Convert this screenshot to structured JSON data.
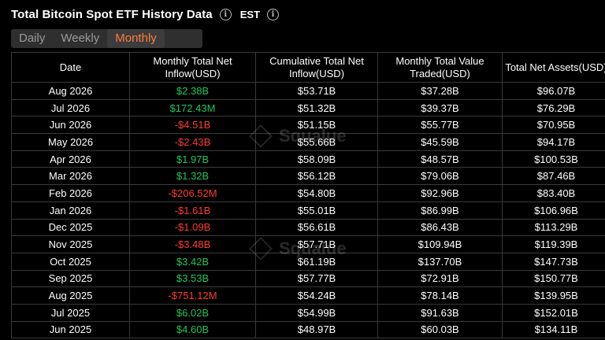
{
  "header": {
    "title": "Total Bitcoin Spot ETF History Data",
    "timezone": "EST"
  },
  "tabs": [
    {
      "label": "Daily",
      "active": false
    },
    {
      "label": "Weekly",
      "active": false
    },
    {
      "label": "Monthly",
      "active": true
    }
  ],
  "watermark": "Squalue",
  "table": {
    "columns": [
      "Date",
      "Monthly Total Net Inflow(USD)",
      "Cumulative Total Net Inflow(USD)",
      "Monthly Total Value Traded(USD)",
      "Total Net Assets(USD)"
    ],
    "rows": [
      {
        "date": "Aug 2026",
        "inflow": "$2.38B",
        "sign": "pos",
        "cumulative": "$53.71B",
        "traded": "$37.28B",
        "assets": "$96.07B"
      },
      {
        "date": "Jul 2026",
        "inflow": "$172.43M",
        "sign": "pos",
        "cumulative": "$51.32B",
        "traded": "$39.37B",
        "assets": "$76.29B"
      },
      {
        "date": "Jun 2026",
        "inflow": "-$4.51B",
        "sign": "neg",
        "cumulative": "$51.15B",
        "traded": "$55.77B",
        "assets": "$70.95B"
      },
      {
        "date": "May 2026",
        "inflow": "-$2.43B",
        "sign": "neg",
        "cumulative": "$55.66B",
        "traded": "$45.59B",
        "assets": "$94.17B"
      },
      {
        "date": "Apr 2026",
        "inflow": "$1.97B",
        "sign": "pos",
        "cumulative": "$58.09B",
        "traded": "$48.57B",
        "assets": "$100.53B"
      },
      {
        "date": "Mar 2026",
        "inflow": "$1.32B",
        "sign": "pos",
        "cumulative": "$56.12B",
        "traded": "$79.06B",
        "assets": "$87.46B"
      },
      {
        "date": "Feb 2026",
        "inflow": "-$206.52M",
        "sign": "neg",
        "cumulative": "$54.80B",
        "traded": "$92.96B",
        "assets": "$83.40B"
      },
      {
        "date": "Jan 2026",
        "inflow": "-$1.61B",
        "sign": "neg",
        "cumulative": "$55.01B",
        "traded": "$86.99B",
        "assets": "$106.96B"
      },
      {
        "date": "Dec 2025",
        "inflow": "-$1.09B",
        "sign": "neg",
        "cumulative": "$56.61B",
        "traded": "$86.43B",
        "assets": "$113.29B"
      },
      {
        "date": "Nov 2025",
        "inflow": "-$3.48B",
        "sign": "neg",
        "cumulative": "$57.71B",
        "traded": "$109.94B",
        "assets": "$119.39B"
      },
      {
        "date": "Oct 2025",
        "inflow": "$3.42B",
        "sign": "pos",
        "cumulative": "$61.19B",
        "traded": "$137.70B",
        "assets": "$147.73B"
      },
      {
        "date": "Sep 2025",
        "inflow": "$3.53B",
        "sign": "pos",
        "cumulative": "$57.77B",
        "traded": "$72.91B",
        "assets": "$150.77B"
      },
      {
        "date": "Aug 2025",
        "inflow": "-$751.12M",
        "sign": "neg",
        "cumulative": "$54.24B",
        "traded": "$78.14B",
        "assets": "$139.95B"
      },
      {
        "date": "Jul 2025",
        "inflow": "$6.02B",
        "sign": "pos",
        "cumulative": "$54.99B",
        "traded": "$91.63B",
        "assets": "$152.01B"
      },
      {
        "date": "Jun 2025",
        "inflow": "$4.60B",
        "sign": "pos",
        "cumulative": "$48.97B",
        "traded": "$60.03B",
        "assets": "$134.11B"
      }
    ]
  },
  "colors": {
    "positive": "#22c55e",
    "negative": "#ff3b30",
    "active_tab": "#ff7a3d"
  }
}
